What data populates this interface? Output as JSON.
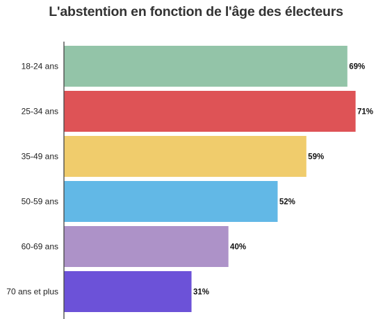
{
  "chart_data": {
    "type": "bar",
    "orientation": "horizontal",
    "title": "L'abstention en fonction de l'âge des électeurs",
    "xlabel": "",
    "ylabel": "",
    "categories": [
      "18-24 ans",
      "25-34 ans",
      "35-49 ans",
      "50-59 ans",
      "60-69 ans",
      "70 ans et plus"
    ],
    "values": [
      69,
      71,
      59,
      52,
      40,
      31
    ],
    "value_labels": [
      "69%",
      "71%",
      "59%",
      "52%",
      "40%",
      "31%"
    ],
    "colors": [
      "#93c4a8",
      "#de5356",
      "#f0cc6c",
      "#62b8e6",
      "#ad92c8",
      "#6c52d8"
    ],
    "xlim": [
      0,
      71
    ],
    "grid": false,
    "legend": "none"
  }
}
